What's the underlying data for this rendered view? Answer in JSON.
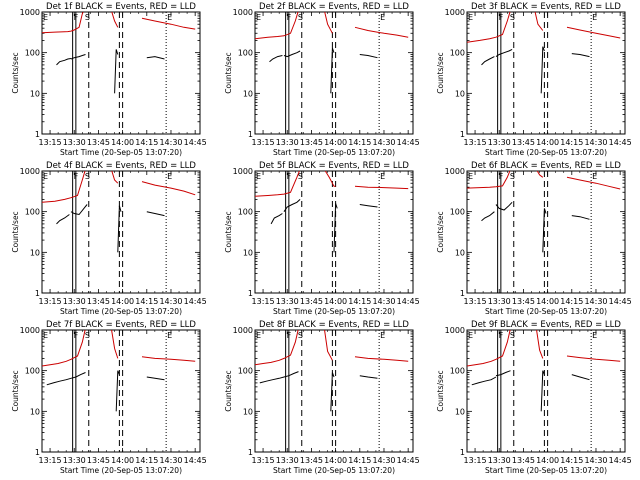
{
  "chart_data": {
    "type": "line",
    "layout": "3x3 grid of small-multiple log-scale time-series panels",
    "shared": {
      "xlabel": "Start Time (20-Sep-05 13:07:20)",
      "ylabel": "Counts/sec",
      "xlim": [
        "13:10",
        "14:48"
      ],
      "ylim": [
        1,
        1000
      ],
      "yscale": "log",
      "xtick_labels": [
        "13:15",
        "13:30",
        "13:45",
        "14:00",
        "14:15",
        "14:30",
        "14:45"
      ],
      "ytick_labels": [
        "1",
        "10",
        "100",
        "1000"
      ],
      "series_names": [
        "BLACK = Events",
        "RED = LLD"
      ],
      "colors": {
        "events": "#000000",
        "lld": "#cc0000"
      },
      "segment_flags": [
        {
          "label": "E",
          "time": "13:10"
        },
        {
          "label": "F",
          "time": "13:29"
        },
        {
          "label": "S",
          "time": "13:36"
        },
        {
          "label": "E",
          "time": "14:27"
        }
      ],
      "solid_lines_at": [
        "13:29",
        "13:31"
      ],
      "dashed_lines_at": [
        "13:39",
        "13:58",
        "14:00"
      ],
      "dotted_lines_at": [
        "14:27"
      ]
    },
    "panels": [
      {
        "title": "Det 1f BLACK = Events, RED = LLD",
        "lld": [
          {
            "x": [
              "13:10",
              "13:18",
              "13:26",
              "13:28",
              "13:30",
              "13:33",
              "13:35",
              "13:36"
            ],
            "y": [
              310,
              320,
              330,
              340,
              360,
              420,
              900,
              1100
            ]
          },
          {
            "x": [
              "13:53",
              "13:55",
              "13:57"
            ],
            "y": [
              1100,
              600,
              420
            ]
          },
          {
            "x": [
              "14:12",
              "14:20",
              "14:30",
              "14:38",
              "14:45"
            ],
            "y": [
              700,
              600,
              500,
              420,
              380
            ]
          }
        ],
        "events": [
          {
            "x": [
              "13:19",
              "13:21",
              "13:24",
              "13:26",
              "13:28"
            ],
            "y": [
              50,
              60,
              65,
              70,
              72
            ]
          },
          {
            "x": [
              "13:28",
              "13:30",
              "13:33",
              "13:35",
              "13:37"
            ],
            "y": [
              70,
              75,
              80,
              85,
              90
            ]
          },
          {
            "x": [
              "13:55",
              "13:56",
              "13:57"
            ],
            "y": [
              10,
              120,
              90
            ]
          },
          {
            "x": [
              "14:15",
              "14:20",
              "14:26"
            ],
            "y": [
              75,
              80,
              70
            ]
          }
        ]
      },
      {
        "title": "Det 2f BLACK = Events, RED = LLD",
        "lld": [
          {
            "x": [
              "13:10",
              "13:18",
              "13:24",
              "13:28",
              "13:32",
              "13:35",
              "13:37"
            ],
            "y": [
              220,
              240,
              250,
              260,
              300,
              600,
              1100
            ]
          },
          {
            "x": [
              "13:53",
              "13:55",
              "13:58"
            ],
            "y": [
              1100,
              500,
              300
            ]
          },
          {
            "x": [
              "14:12",
              "14:20",
              "14:30",
              "14:38",
              "14:45"
            ],
            "y": [
              420,
              350,
              300,
              270,
              240
            ]
          }
        ],
        "events": [
          {
            "x": [
              "13:19",
              "13:21",
              "13:24",
              "13:27"
            ],
            "y": [
              60,
              70,
              80,
              85
            ]
          },
          {
            "x": [
              "13:28",
              "13:30",
              "13:33",
              "13:36",
              "13:38"
            ],
            "y": [
              85,
              80,
              90,
              100,
              110
            ]
          },
          {
            "x": [
              "13:57",
              "13:58",
              "13:59"
            ],
            "y": [
              10,
              130,
              100
            ]
          },
          {
            "x": [
              "14:15",
              "14:20",
              "14:26"
            ],
            "y": [
              90,
              85,
              75
            ]
          }
        ]
      },
      {
        "title": "Det 3f BLACK = Events, RED = LLD",
        "lld": [
          {
            "x": [
              "13:10",
              "13:18",
              "13:24",
              "13:28",
              "13:32",
              "13:35",
              "13:37"
            ],
            "y": [
              180,
              200,
              220,
              240,
              280,
              600,
              1100
            ]
          },
          {
            "x": [
              "13:52",
              "13:54",
              "13:57"
            ],
            "y": [
              1100,
              500,
              350
            ]
          },
          {
            "x": [
              "14:12",
              "14:20",
              "14:30",
              "14:38",
              "14:45"
            ],
            "y": [
              420,
              360,
              300,
              260,
              230
            ]
          }
        ],
        "events": [
          {
            "x": [
              "13:19",
              "13:21",
              "13:24",
              "13:27"
            ],
            "y": [
              50,
              60,
              70,
              80
            ]
          },
          {
            "x": [
              "13:28",
              "13:30",
              "13:33",
              "13:36",
              "13:38"
            ],
            "y": [
              80,
              90,
              100,
              110,
              120
            ]
          },
          {
            "x": [
              "13:56",
              "13:57",
              "13:58"
            ],
            "y": [
              10,
              140,
              110
            ]
          },
          {
            "x": [
              "14:15",
              "14:20",
              "14:26"
            ],
            "y": [
              95,
              90,
              80
            ]
          }
        ]
      },
      {
        "title": "Det 4f BLACK = Events, RED = LLD",
        "lld": [
          {
            "x": [
              "13:10",
              "13:18",
              "13:24",
              "13:28",
              "13:32",
              "13:35",
              "13:37"
            ],
            "y": [
              170,
              180,
              200,
              220,
              250,
              600,
              1100
            ]
          },
          {
            "x": [
              "13:53",
              "13:55",
              "13:57"
            ],
            "y": [
              1100,
              600,
              500
            ]
          },
          {
            "x": [
              "14:12",
              "14:20",
              "14:30",
              "14:38",
              "14:45"
            ],
            "y": [
              550,
              450,
              380,
              320,
              260
            ]
          }
        ],
        "events": [
          {
            "x": [
              "13:19",
              "13:21",
              "13:24",
              "13:27"
            ],
            "y": [
              50,
              60,
              70,
              85
            ]
          },
          {
            "x": [
              "13:28",
              "13:30",
              "13:33",
              "13:36",
              "13:38"
            ],
            "y": [
              100,
              90,
              85,
              120,
              150
            ]
          },
          {
            "x": [
              "13:57",
              "13:58",
              "13:59"
            ],
            "y": [
              10,
              140,
              100
            ]
          },
          {
            "x": [
              "14:15",
              "14:20",
              "14:26"
            ],
            "y": [
              100,
              90,
              80
            ]
          }
        ]
      },
      {
        "title": "Det 5f BLACK = Events, RED = LLD",
        "lld": [
          {
            "x": [
              "13:10",
              "13:18",
              "13:24",
              "13:28",
              "13:32",
              "13:36",
              "13:38"
            ],
            "y": [
              240,
              250,
              260,
              270,
              300,
              700,
              1100
            ]
          },
          {
            "x": [
              "13:53",
              "13:56",
              "13:59",
              "14:00"
            ],
            "y": [
              1100,
              700,
              420,
              420
            ]
          },
          {
            "x": [
              "14:12",
              "14:20",
              "14:30",
              "14:38",
              "14:45"
            ],
            "y": [
              420,
              400,
              390,
              380,
              370
            ]
          }
        ],
        "events": [
          {
            "x": [
              "13:20",
              "13:22",
              "13:25",
              "13:27"
            ],
            "y": [
              50,
              70,
              80,
              90
            ]
          },
          {
            "x": [
              "13:28",
              "13:30",
              "13:33",
              "13:36",
              "13:38"
            ],
            "y": [
              100,
              130,
              150,
              170,
              200
            ]
          },
          {
            "x": [
              "13:59",
              "14:00",
              "14:01"
            ],
            "y": [
              10,
              160,
              120
            ]
          },
          {
            "x": [
              "14:15",
              "14:20",
              "14:26"
            ],
            "y": [
              150,
              140,
              130
            ]
          }
        ]
      },
      {
        "title": "Det 6f BLACK = Events, RED = LLD",
        "lld": [
          {
            "x": [
              "13:10",
              "13:18",
              "13:24",
              "13:28",
              "13:32",
              "13:35",
              "13:37"
            ],
            "y": [
              380,
              390,
              400,
              410,
              430,
              700,
              1100
            ]
          },
          {
            "x": [
              "13:53",
              "13:55",
              "13:57"
            ],
            "y": [
              1100,
              800,
              700
            ]
          },
          {
            "x": [
              "14:12",
              "14:20",
              "14:30",
              "14:38",
              "14:45"
            ],
            "y": [
              700,
              600,
              500,
              420,
              360
            ]
          }
        ],
        "events": [
          {
            "x": [
              "13:19",
              "13:21",
              "13:24",
              "13:27"
            ],
            "y": [
              60,
              70,
              80,
              100
            ]
          },
          {
            "x": [
              "13:28",
              "13:30",
              "13:33",
              "13:36",
              "13:38"
            ],
            "y": [
              150,
              120,
              110,
              140,
              170
            ]
          },
          {
            "x": [
              "13:57",
              "13:58",
              "13:59"
            ],
            "y": [
              10,
              120,
              90
            ]
          },
          {
            "x": [
              "14:15",
              "14:20",
              "14:26"
            ],
            "y": [
              80,
              75,
              65
            ]
          }
        ]
      },
      {
        "title": "Det 7f BLACK = Events, RED = LLD",
        "lld": [
          {
            "x": [
              "13:10",
              "13:15",
              "13:20",
              "13:25",
              "13:28",
              "13:32",
              "13:35",
              "13:37"
            ],
            "y": [
              130,
              140,
              150,
              170,
              190,
              230,
              500,
              1100
            ]
          },
          {
            "x": [
              "13:53",
              "13:55",
              "13:57"
            ],
            "y": [
              1100,
              350,
              200
            ]
          },
          {
            "x": [
              "14:12",
              "14:20",
              "14:30",
              "14:38",
              "14:45"
            ],
            "y": [
              220,
              200,
              190,
              180,
              170
            ]
          }
        ],
        "events": [
          {
            "x": [
              "13:13",
              "13:17",
              "13:21",
              "13:25",
              "13:28"
            ],
            "y": [
              45,
              50,
              55,
              60,
              65
            ]
          },
          {
            "x": [
              "13:28",
              "13:31",
              "13:34",
              "13:37"
            ],
            "y": [
              65,
              70,
              80,
              90
            ]
          },
          {
            "x": [
              "13:56",
              "13:57",
              "13:58"
            ],
            "y": [
              10,
              100,
              80
            ]
          },
          {
            "x": [
              "14:15",
              "14:20",
              "14:26"
            ],
            "y": [
              70,
              65,
              60
            ]
          }
        ]
      },
      {
        "title": "Det 8f BLACK = Events, RED = LLD",
        "lld": [
          {
            "x": [
              "13:10",
              "13:15",
              "13:20",
              "13:25",
              "13:28",
              "13:32",
              "13:35",
              "13:37"
            ],
            "y": [
              140,
              150,
              160,
              180,
              200,
              240,
              500,
              1100
            ]
          },
          {
            "x": [
              "13:53",
              "13:55",
              "13:58"
            ],
            "y": [
              1100,
              300,
              180
            ]
          },
          {
            "x": [
              "14:12",
              "14:20",
              "14:30",
              "14:38",
              "14:45"
            ],
            "y": [
              220,
              200,
              190,
              180,
              170
            ]
          }
        ],
        "events": [
          {
            "x": [
              "13:13",
              "13:17",
              "13:21",
              "13:25",
              "13:28"
            ],
            "y": [
              50,
              55,
              60,
              65,
              70
            ]
          },
          {
            "x": [
              "13:28",
              "13:31",
              "13:34",
              "13:37"
            ],
            "y": [
              70,
              75,
              85,
              95
            ]
          },
          {
            "x": [
              "13:57",
              "13:58",
              "13:59"
            ],
            "y": [
              10,
              90,
              70
            ]
          },
          {
            "x": [
              "14:15",
              "14:20",
              "14:26"
            ],
            "y": [
              75,
              70,
              65
            ]
          }
        ]
      },
      {
        "title": "Det 9f BLACK = Events, RED = LLD",
        "lld": [
          {
            "x": [
              "13:10",
              "13:15",
              "13:20",
              "13:25",
              "13:28",
              "13:32",
              "13:35",
              "13:37"
            ],
            "y": [
              130,
              140,
              150,
              170,
              190,
              230,
              500,
              1100
            ]
          },
          {
            "x": [
              "13:53",
              "13:55",
              "13:57"
            ],
            "y": [
              1100,
              320,
              200
            ]
          },
          {
            "x": [
              "14:12",
              "14:20",
              "14:30",
              "14:38",
              "14:45"
            ],
            "y": [
              230,
              210,
              190,
              180,
              170
            ]
          }
        ],
        "events": [
          {
            "x": [
              "13:13",
              "13:17",
              "13:21",
              "13:25",
              "13:28"
            ],
            "y": [
              45,
              50,
              55,
              60,
              70
            ]
          },
          {
            "x": [
              "13:28",
              "13:31",
              "13:34",
              "13:37"
            ],
            "y": [
              75,
              80,
              90,
              100
            ]
          },
          {
            "x": [
              "13:56",
              "13:57",
              "13:58"
            ],
            "y": [
              10,
              100,
              80
            ]
          },
          {
            "x": [
              "14:15",
              "14:20",
              "14:26"
            ],
            "y": [
              80,
              70,
              60
            ]
          }
        ]
      }
    ]
  }
}
